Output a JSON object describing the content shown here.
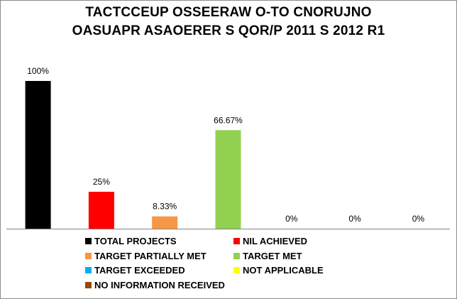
{
  "chart_data": {
    "type": "bar",
    "title_lines": [
      "TACTCCEUP OSSEERAW O-TO CNORUJNO",
      "OASUAPR ASAOERER S QOR/P 2011 S 2012 R1"
    ],
    "categories": [
      "TOTAL PROJECTS",
      "NIL ACHIEVED",
      "TARGET PARTIALLY MET",
      "TARGET MET",
      "TARGET EXCEEDED",
      "NOT APPLICABLE",
      "NO INFORMATION RECEIVED"
    ],
    "values": [
      100,
      25,
      8.33,
      66.67,
      0,
      0,
      0
    ],
    "data_labels": [
      "100%",
      "25%",
      "8.33%",
      "66.67%",
      "0%",
      "0%",
      "0%"
    ],
    "colors": [
      "#000000",
      "#ff0000",
      "#f79646",
      "#92d050",
      "#00b0f0",
      "#ffff00",
      "#974706"
    ],
    "ylim": [
      0,
      100
    ],
    "grid": false,
    "legend_position": "bottom",
    "xlabel": "",
    "ylabel": ""
  }
}
